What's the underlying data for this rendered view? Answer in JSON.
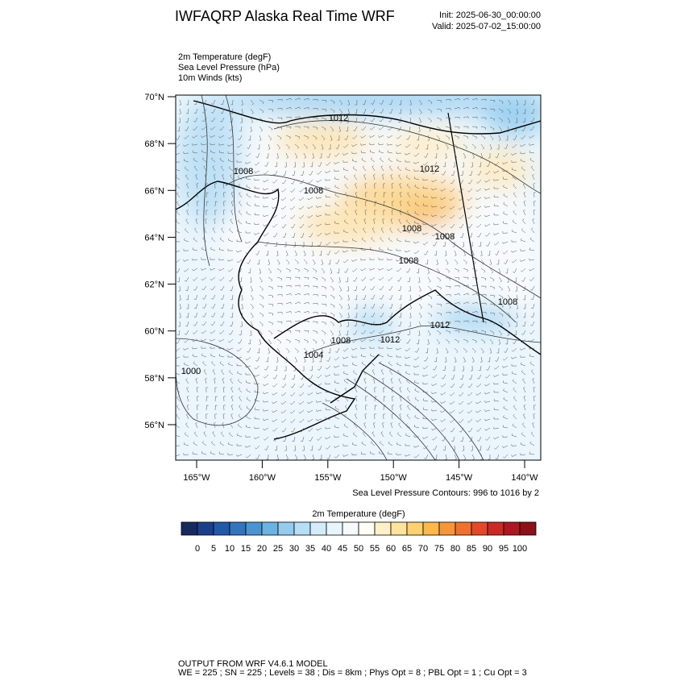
{
  "header": {
    "title": "IWFAQRP Alaska Real Time WRF",
    "init": "Init: 2025-06-30_00:00:00",
    "valid": "Valid: 2025-07-02_15:00:00"
  },
  "fields": [
    "2m Temperature   (degF)",
    "Sea Level Pressure   (hPa)",
    "10m Winds   (kts)"
  ],
  "map": {
    "lat_ticks": [
      {
        "value": 70,
        "label": "70°N"
      },
      {
        "value": 68,
        "label": "68°N"
      },
      {
        "value": 66,
        "label": "66°N"
      },
      {
        "value": 64,
        "label": "64°N"
      },
      {
        "value": 62,
        "label": "62°N"
      },
      {
        "value": 60,
        "label": "60°N"
      },
      {
        "value": 58,
        "label": "58°N"
      },
      {
        "value": 56,
        "label": "56°N"
      }
    ],
    "lon_ticks": [
      {
        "value": -165,
        "label": "165°W"
      },
      {
        "value": -160,
        "label": "160°W"
      },
      {
        "value": -155,
        "label": "155°W"
      },
      {
        "value": -150,
        "label": "150°W"
      },
      {
        "value": -145,
        "label": "145°W"
      },
      {
        "value": -140,
        "label": "140°W"
      }
    ],
    "contour_labels": [
      "1012",
      "1012",
      "1008",
      "1008",
      "1008",
      "1008",
      "1008",
      "1008",
      "1008",
      "1012",
      "1012",
      "1004",
      "1000"
    ],
    "contour_note": "Sea Level Pressure Contours: 996 to 1016 by 2"
  },
  "colorbar": {
    "title": "2m Temperature  (degF)",
    "levels": [
      0,
      5,
      10,
      15,
      20,
      25,
      30,
      35,
      40,
      45,
      50,
      55,
      60,
      65,
      70,
      75,
      80,
      85,
      90,
      95,
      100
    ],
    "colors": [
      "#172a5e",
      "#1d3f8a",
      "#2458a8",
      "#3274be",
      "#4a95d1",
      "#6cb2e2",
      "#94cbee",
      "#b6def5",
      "#d4ecf9",
      "#e9f5fc",
      "#f6fafd",
      "#fffdf5",
      "#fff0c8",
      "#ffe39d",
      "#fdd072",
      "#fbb84d",
      "#f6963a",
      "#ef7130",
      "#e04a2b",
      "#c92a26",
      "#ad1820",
      "#8c1118"
    ]
  },
  "footer": [
    "OUTPUT FROM WRF V4.6.1 MODEL",
    "WE = 225 ; SN = 225 ; Levels = 38 ; Dis = 8km ; Phys Opt = 8 ; PBL Opt = 1 ; Cu Opt = 3"
  ]
}
